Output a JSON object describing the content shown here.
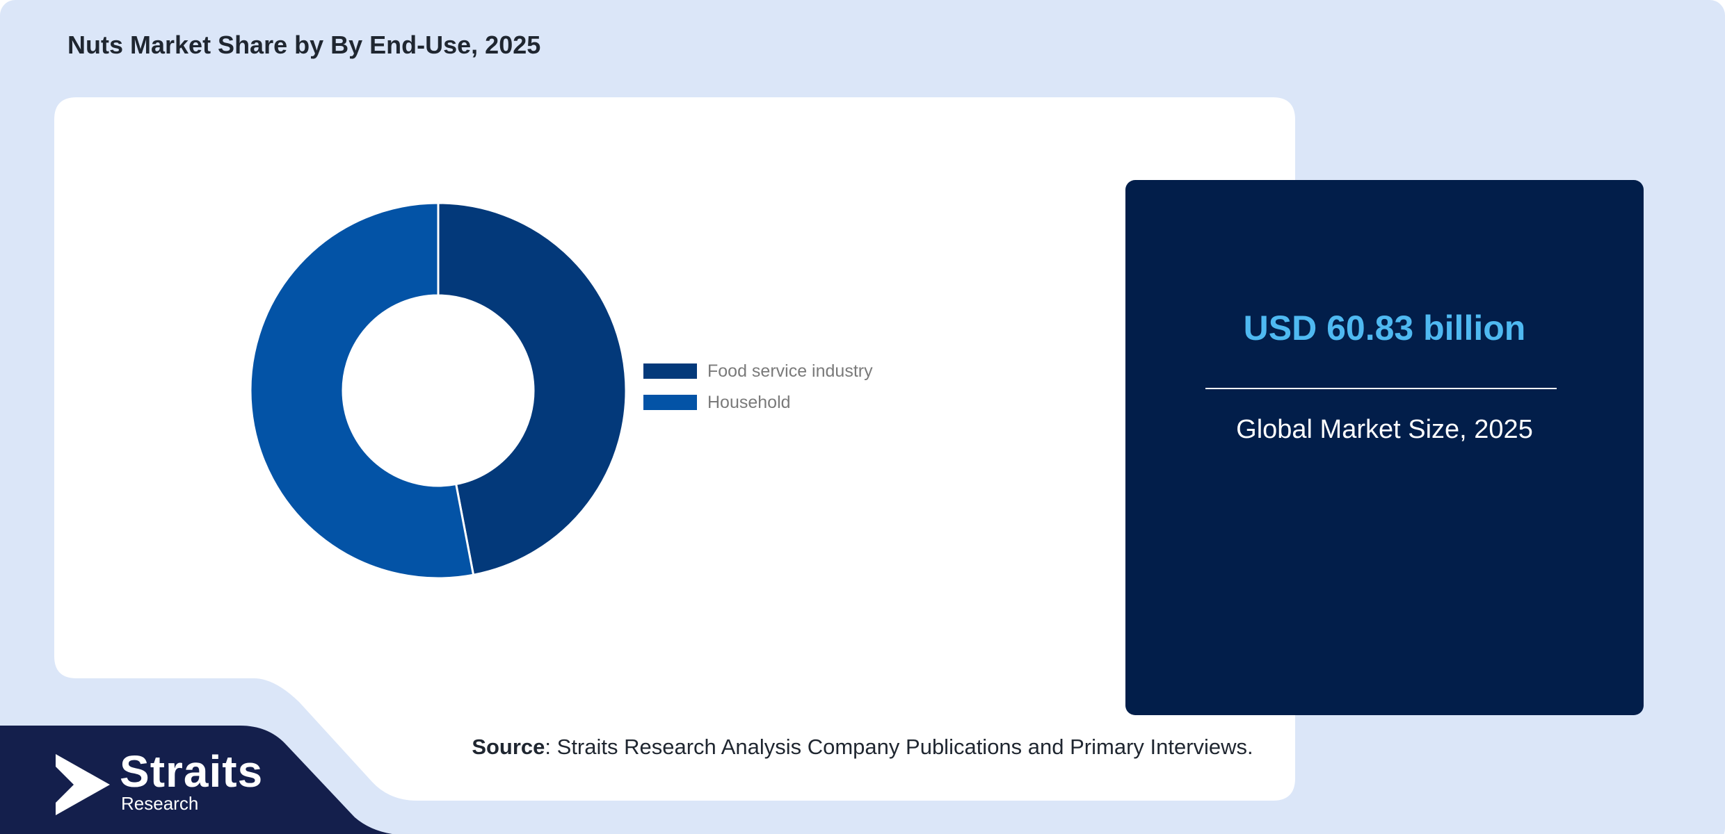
{
  "page": {
    "title": "Nuts Market Share by By End-Use, 2025"
  },
  "colors": {
    "background": "#dbe6f8",
    "panel": "#ffffff",
    "navy_footer": "#141f4c",
    "card": "#021e4a",
    "accent_value": "#4fb9f1"
  },
  "chart_data": {
    "type": "pie",
    "donut": true,
    "categories": [
      "Food service industry",
      "Household"
    ],
    "values": [
      47,
      53
    ],
    "colors": [
      "#03397a",
      "#0353a6"
    ],
    "legend_position": "right"
  },
  "stat": {
    "value": "USD 60.83 billion",
    "label": "Global Market Size, 2025"
  },
  "source": {
    "label": "Source",
    "text": ": Straits Research Analysis Company Publications and Primary Interviews."
  },
  "logo": {
    "name": "Straits",
    "sub": "Research"
  }
}
